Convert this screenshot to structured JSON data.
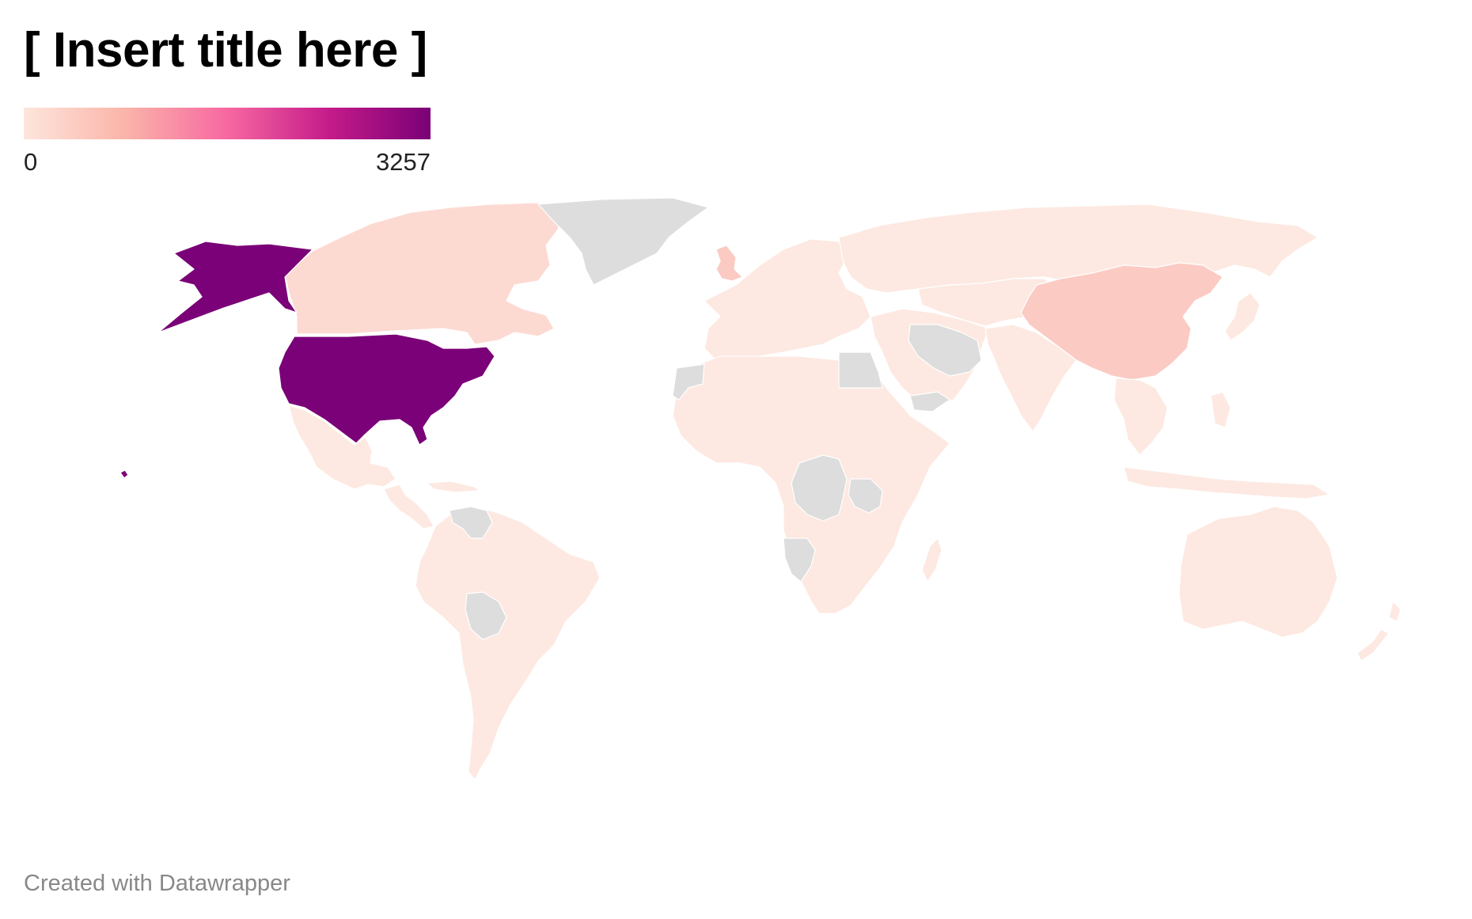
{
  "title": "[ Insert title here ]",
  "legend": {
    "min_label": "0",
    "max_label": "3257",
    "gradient_colors": [
      "#fde6dc",
      "#fbb4a9",
      "#f768a1",
      "#c51b8a",
      "#7a0177"
    ]
  },
  "colors": {
    "no_data": "#dddddd",
    "low": "#fde9e1",
    "low_mid": "#fcdad2",
    "mid": "#fbcbc3",
    "max": "#7a0177"
  },
  "regions": [
    {
      "id": "usa",
      "name": "United States",
      "level": "max"
    },
    {
      "id": "alaska",
      "name": "Alaska",
      "level": "max"
    },
    {
      "id": "hawaii",
      "name": "Hawaii",
      "level": "max"
    },
    {
      "id": "canada",
      "name": "Canada",
      "level": "low_mid"
    },
    {
      "id": "greenland",
      "name": "Greenland",
      "level": "no_data"
    },
    {
      "id": "mexico",
      "name": "Mexico",
      "level": "low"
    },
    {
      "id": "central-america",
      "name": "Central America",
      "level": "low"
    },
    {
      "id": "venezuela",
      "name": "Venezuela",
      "level": "no_data"
    },
    {
      "id": "south-america",
      "name": "South America",
      "level": "low"
    },
    {
      "id": "bolivia",
      "name": "Bolivia",
      "level": "no_data"
    },
    {
      "id": "uk",
      "name": "United Kingdom",
      "level": "mid"
    },
    {
      "id": "europe",
      "name": "Europe",
      "level": "low"
    },
    {
      "id": "russia",
      "name": "Russia",
      "level": "low"
    },
    {
      "id": "africa",
      "name": "Africa",
      "level": "low"
    },
    {
      "id": "western-sahara",
      "name": "Western Sahara",
      "level": "no_data"
    },
    {
      "id": "egypt",
      "name": "Egypt",
      "level": "no_data"
    },
    {
      "id": "dr-congo",
      "name": "DR Congo",
      "level": "no_data"
    },
    {
      "id": "tanzania",
      "name": "Tanzania",
      "level": "no_data"
    },
    {
      "id": "namibia",
      "name": "Namibia",
      "level": "no_data"
    },
    {
      "id": "madagascar",
      "name": "Madagascar",
      "level": "low"
    },
    {
      "id": "middle-east",
      "name": "Middle East",
      "level": "low"
    },
    {
      "id": "iran",
      "name": "Iran",
      "level": "no_data"
    },
    {
      "id": "yemen",
      "name": "Yemen",
      "level": "no_data"
    },
    {
      "id": "central-asia",
      "name": "Central Asia",
      "level": "low"
    },
    {
      "id": "india",
      "name": "India",
      "level": "low"
    },
    {
      "id": "china",
      "name": "China",
      "level": "mid"
    },
    {
      "id": "japan",
      "name": "Japan",
      "level": "low"
    },
    {
      "id": "southeast-asia",
      "name": "Southeast Asia",
      "level": "low"
    },
    {
      "id": "indonesia",
      "name": "Indonesia",
      "level": "low"
    },
    {
      "id": "australia",
      "name": "Australia",
      "level": "low"
    },
    {
      "id": "new-zealand",
      "name": "New Zealand",
      "level": "low"
    }
  ],
  "footer": "Created with Datawrapper"
}
